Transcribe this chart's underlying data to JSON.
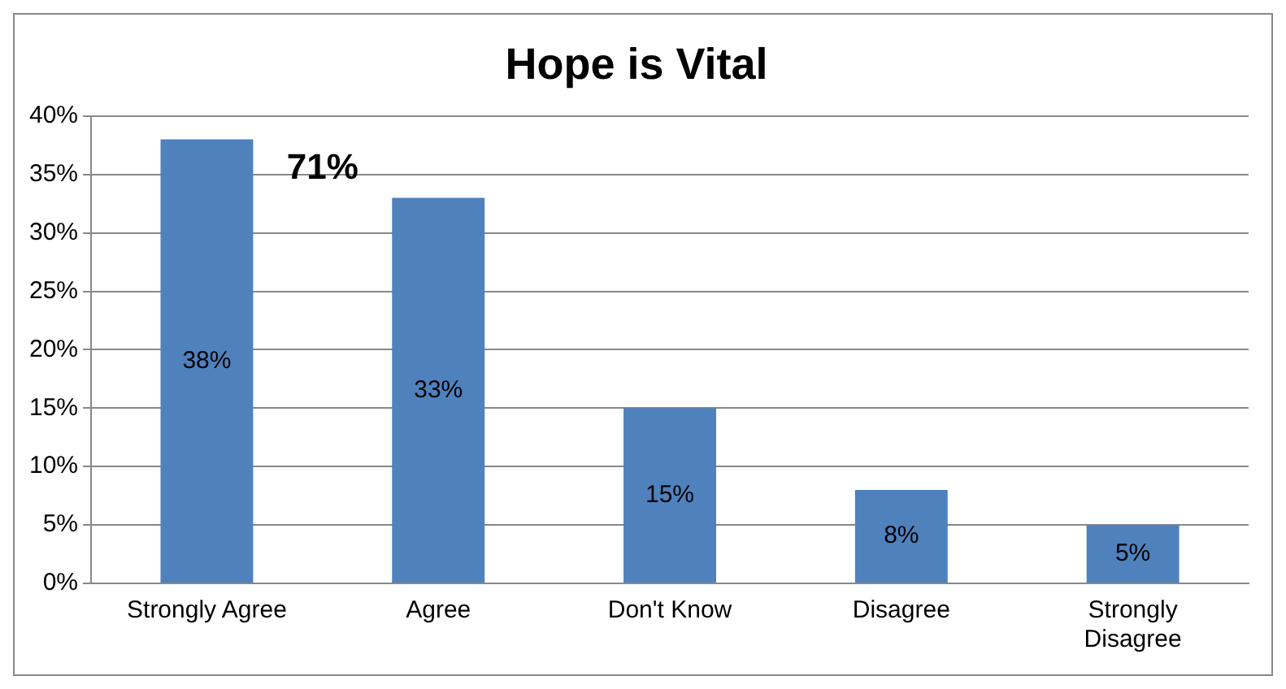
{
  "chart_data": {
    "type": "bar",
    "title": "Hope is Vital",
    "categories": [
      "Strongly Agree",
      "Agree",
      "Don't Know",
      "Disagree",
      "Strongly Disagree"
    ],
    "values": [
      38,
      33,
      15,
      8,
      5
    ],
    "color": "#4f81bd",
    "value_labels": [
      "38%",
      "33%",
      "15%",
      "8%",
      "5%"
    ],
    "ylim": [
      0,
      40
    ],
    "yticks": [
      {
        "value": 0,
        "label": "0%"
      },
      {
        "value": 5,
        "label": "5%"
      },
      {
        "value": 10,
        "label": "10%"
      },
      {
        "value": 15,
        "label": "15%"
      },
      {
        "value": 20,
        "label": "20%"
      },
      {
        "value": 25,
        "label": "25%"
      },
      {
        "value": 30,
        "label": "30%"
      },
      {
        "value": 35,
        "label": "35%"
      },
      {
        "value": 40,
        "label": "40%"
      }
    ],
    "grid": "y",
    "legend": false,
    "annotations": [
      "71%"
    ]
  }
}
